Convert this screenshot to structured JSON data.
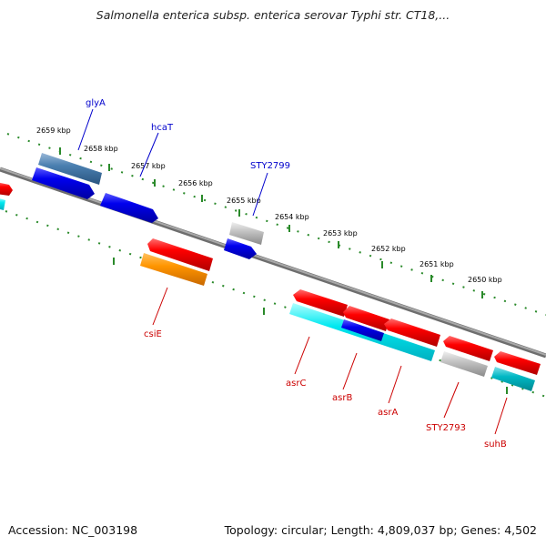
{
  "title": "Salmonella enterica subsp. enterica serovar Typhi str. CT18,...",
  "footer": {
    "accession": "Accession: NC_003198",
    "summary": "Topology: circular; Length: 4,809,037 bp; Genes: 4,502"
  },
  "ticks": [
    "2659 kbp",
    "2658 kbp",
    "2657 kbp",
    "2656 kbp",
    "2655 kbp",
    "2654 kbp",
    "2653 kbp",
    "2652 kbp",
    "2651 kbp",
    "2650 kbp"
  ],
  "gene_labels_top": [
    "glyA",
    "hcaT",
    "STY2799"
  ],
  "gene_labels_bottom": [
    "csiE",
    "asrC",
    "asrB",
    "asrA",
    "STY2793",
    "suhB"
  ],
  "colors": {
    "label_top": "#0000cc",
    "label_bottom": "#cc0000",
    "backbone": "#808080",
    "tick_mark": "#228b22"
  }
}
